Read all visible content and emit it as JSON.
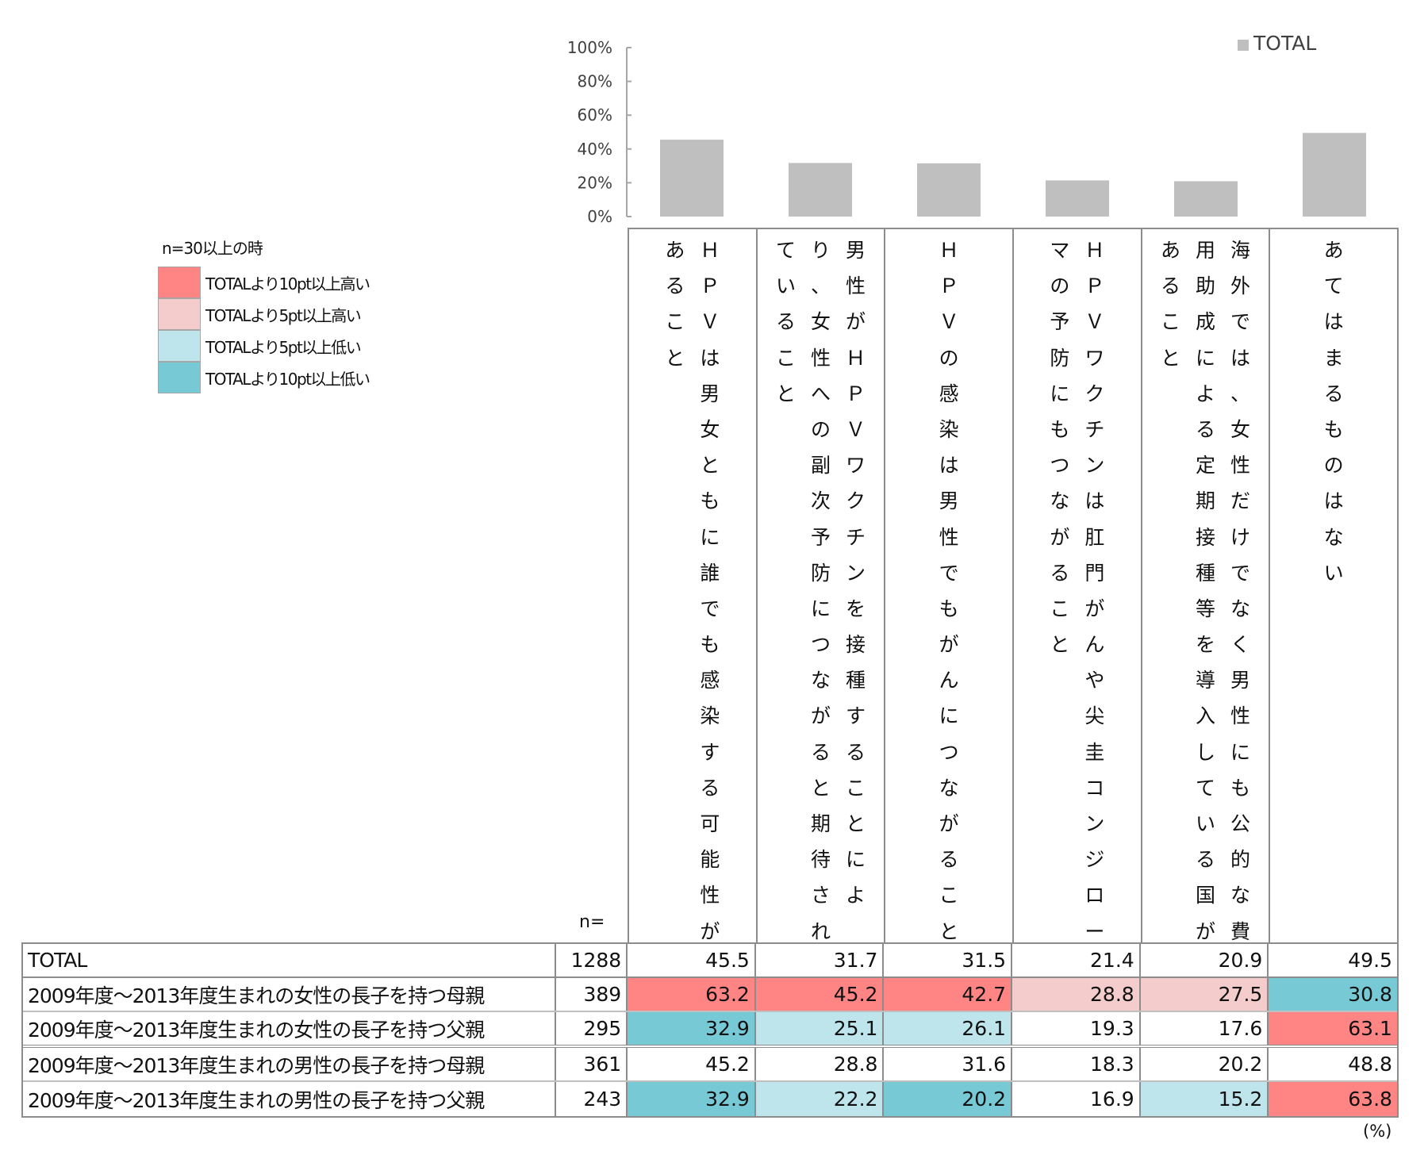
{
  "colors": {
    "bar": "#bfbfbf",
    "high10": "#ff8585",
    "high5": "#f4cccc",
    "low5": "#bfe5ec",
    "low10": "#78c9d6",
    "none": "#ffffff"
  },
  "chart_data": {
    "type": "bar",
    "title": "",
    "xlabel": "",
    "ylabel": "",
    "ylim": [
      0,
      100
    ],
    "yticks": [
      "0%",
      "20%",
      "40%",
      "60%",
      "80%",
      "100%"
    ],
    "ytick_values": [
      0,
      20,
      40,
      60,
      80,
      100
    ],
    "grid": false,
    "legend": {
      "position": "top-right",
      "entries": [
        "TOTAL"
      ]
    },
    "categories": [
      "ＨＰＶは男女ともに誰でも感染する可能性があること",
      "男性がＨＰＶワクチンを接種することにより、女性への副次予防につながると期待されていること",
      "ＨＰＶの感染は男性でもがんにつながること",
      "ＨＰＶワクチンは肛門がんや尖圭コンジローマの予防にもつながること",
      "海外では、女性だけでなく男性にも公的な費用助成による定期接種等を導入している国があること",
      "あてはまるものはない"
    ],
    "series": [
      {
        "name": "TOTAL",
        "values": [
          45.5,
          31.7,
          31.5,
          21.4,
          20.9,
          49.5
        ]
      }
    ]
  },
  "header_lines": [
    [
      "ＨＰＶは男女ともに誰でも感染する可能性が",
      "あること"
    ],
    [
      "男性がＨＰＶワクチンを接種することによ",
      "り、女性への副次予防につながると期待され",
      "ていること"
    ],
    [
      "ＨＰＶの感染は男性でもがんにつながること"
    ],
    [
      "ＨＰＶワクチンは肛門がんや尖圭コンジロー",
      "マの予防にもつながること"
    ],
    [
      "海外では、女性だけでなく男性にも公的な費",
      "用助成による定期接種等を導入している国が",
      "あること"
    ],
    [
      "あてはまるものはない"
    ]
  ],
  "color_legend": {
    "title": "n=30以上の時",
    "items": [
      {
        "label": "TOTALより10pt以上高い",
        "key": "high10"
      },
      {
        "label": "TOTALより5pt以上高い",
        "key": "high5"
      },
      {
        "label": "TOTALより5pt以上低い",
        "key": "low5"
      },
      {
        "label": "TOTALより10pt以上低い",
        "key": "low10"
      }
    ]
  },
  "table": {
    "n_header": "n=",
    "unit": "(%)",
    "rows": [
      {
        "label": "TOTAL",
        "n": "1288",
        "values": [
          "45.5",
          "31.7",
          "31.5",
          "21.4",
          "20.9",
          "49.5"
        ],
        "highlight": [
          "none",
          "none",
          "none",
          "none",
          "none",
          "none"
        ]
      },
      {
        "label": "2009年度～2013年度生まれの女性の長子を持つ母親",
        "n": "389",
        "values": [
          "63.2",
          "45.2",
          "42.7",
          "28.8",
          "27.5",
          "30.8"
        ],
        "highlight": [
          "high10",
          "high10",
          "high10",
          "high5",
          "high5",
          "low10"
        ]
      },
      {
        "label": "2009年度～2013年度生まれの女性の長子を持つ父親",
        "n": "295",
        "values": [
          "32.9",
          "25.1",
          "26.1",
          "19.3",
          "17.6",
          "63.1"
        ],
        "highlight": [
          "low10",
          "low5",
          "low5",
          "none",
          "none",
          "high10"
        ]
      },
      {
        "label": "2009年度～2013年度生まれの男性の長子を持つ母親",
        "n": "361",
        "values": [
          "45.2",
          "28.8",
          "31.6",
          "18.3",
          "20.2",
          "48.8"
        ],
        "highlight": [
          "none",
          "none",
          "none",
          "none",
          "none",
          "none"
        ]
      },
      {
        "label": "2009年度～2013年度生まれの男性の長子を持つ父親",
        "n": "243",
        "values": [
          "32.9",
          "22.2",
          "20.2",
          "16.9",
          "15.2",
          "63.8"
        ],
        "highlight": [
          "low10",
          "low5",
          "low10",
          "none",
          "low5",
          "high10"
        ]
      }
    ]
  }
}
